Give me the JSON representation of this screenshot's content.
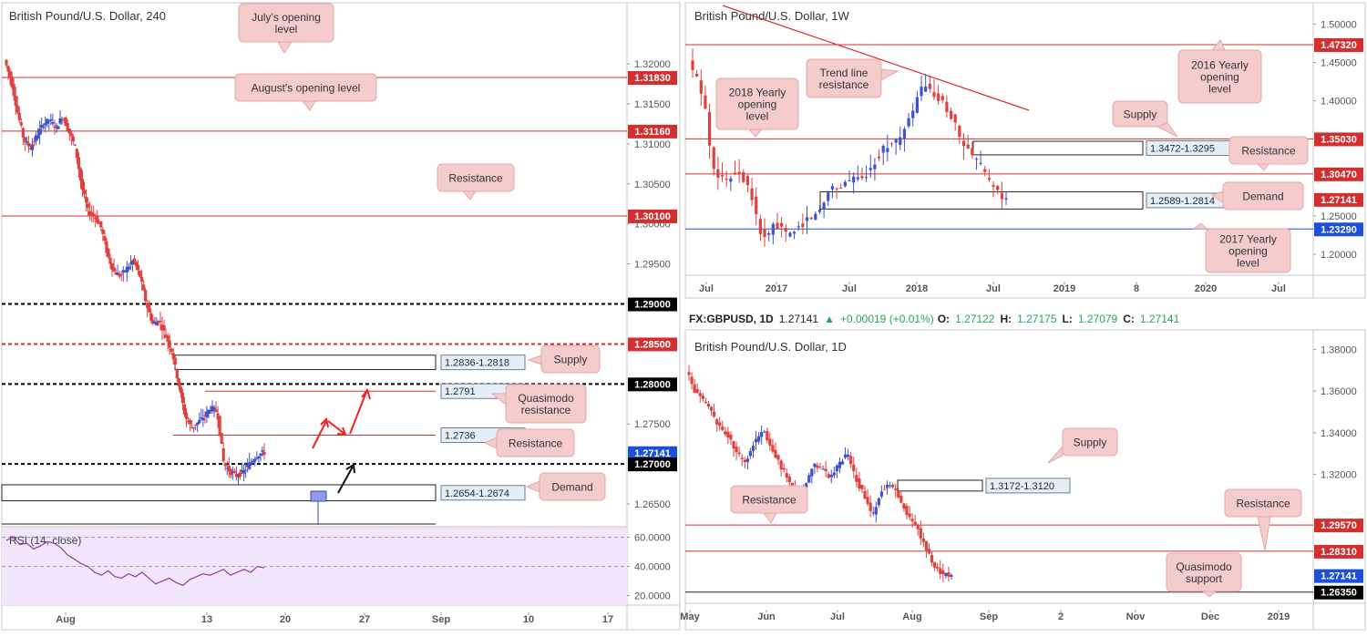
{
  "panels": {
    "left": {
      "title": "British Pound/U.S. Dollar, 240",
      "price_levels": [
        {
          "label": "1.32000"
        },
        {
          "label": "1.31500"
        },
        {
          "label": "1.31000"
        },
        {
          "label": "1.30500"
        },
        {
          "label": "1.30000"
        },
        {
          "label": "1.29500"
        },
        {
          "label": "1.27500"
        },
        {
          "label": "1.26500"
        }
      ],
      "highlight_levels": [
        {
          "label": "1.31830",
          "bg": "#d32f2f"
        },
        {
          "label": "1.31160",
          "bg": "#d32f2f"
        },
        {
          "label": "1.30100",
          "bg": "#d32f2f"
        },
        {
          "label": "1.29000",
          "bg": "#000000"
        },
        {
          "label": "1.28500",
          "bg": "#d32f2f"
        },
        {
          "label": "1.28000",
          "bg": "#000000"
        },
        {
          "label": "1.27141",
          "bg": "#1e4fd8"
        },
        {
          "label": "1.27000",
          "bg": "#000000"
        }
      ],
      "date_labels": [
        "Aug",
        "13",
        "20",
        "27",
        "Sep",
        "10",
        "17"
      ],
      "boxes": [
        "1.2836-1.2818",
        "1.2791",
        "1.2736",
        "1.2654-1.2674"
      ],
      "callouts": [
        "July's opening level",
        "August's opening level",
        "Resistance",
        "Supply",
        "Quasimodo resistance",
        "Resistance",
        "Demand"
      ],
      "rsi": {
        "title": "RSI (14, close)",
        "levels": [
          "60.0000",
          "40.0000",
          "20.0000"
        ]
      }
    },
    "weekly": {
      "title": "British Pound/U.S. Dollar, 1W",
      "price_levels": [
        {
          "label": "1.50000"
        },
        {
          "label": "1.45000"
        },
        {
          "label": "1.40000"
        },
        {
          "label": "1.25000"
        },
        {
          "label": "1.20000"
        }
      ],
      "highlight_levels": [
        {
          "label": "1.47320",
          "bg": "#d32f2f"
        },
        {
          "label": "1.35030",
          "bg": "#d32f2f"
        },
        {
          "label": "1.30470",
          "bg": "#d32f2f"
        },
        {
          "label": "1.27141",
          "bg": "#d32f2f"
        },
        {
          "label": "1.23290",
          "bg": "#1e4fd8"
        }
      ],
      "date_labels": [
        "Jul",
        "2017",
        "Jul",
        "2018",
        "Jul",
        "2019",
        "8",
        "2020",
        "Jul"
      ],
      "boxes": [
        "1.3472-1.3295",
        "1.2589-1.2814"
      ],
      "callouts": [
        "Trend line resistance",
        "2018 Yearly opening level",
        "2016 Yearly opening level",
        "Supply",
        "Resistance",
        "Demand",
        "2017 Yearly opening level"
      ]
    },
    "daily": {
      "title": "British Pound/U.S. Dollar, 1D",
      "price_levels": [
        {
          "label": "1.38000"
        },
        {
          "label": "1.36000"
        },
        {
          "label": "1.34000"
        },
        {
          "label": "1.32000"
        }
      ],
      "highlight_levels": [
        {
          "label": "1.29570",
          "bg": "#d32f2f"
        },
        {
          "label": "1.28310",
          "bg": "#d32f2f"
        },
        {
          "label": "1.27141",
          "bg": "#1e4fd8"
        },
        {
          "label": "1.26350",
          "bg": "#000000"
        }
      ],
      "date_labels": [
        "May",
        "Jun",
        "Jul",
        "Aug",
        "Sep",
        "2",
        "Nov",
        "Dec",
        "2019"
      ],
      "boxes": [
        "1.3172-1.3120"
      ],
      "callouts": [
        "Supply",
        "Resistance",
        "Resistance",
        "Quasimodo support"
      ]
    }
  },
  "header_bar": {
    "symbol": "FX:GBPUSD, 1D",
    "last": "1.27141",
    "arrow": "▲",
    "change": "+0.00019 (+0.01%)",
    "open_label": "O:",
    "open": "1.27122",
    "high_label": "H:",
    "high": "1.27175",
    "low_label": "L:",
    "low": "1.27079",
    "close_label": "C:",
    "close": "1.27141"
  },
  "colors": {
    "up": "#3f51d1",
    "down": "#e0413e",
    "line_red": "#d32f2f",
    "blue": "#1e4fd8",
    "callout_bg": "#f5cccc",
    "rsi_bg": "#f1e6fb",
    "rsi_line": "#8e3c9e"
  },
  "chart_data": [
    {
      "type": "line",
      "title": "British Pound/U.S. Dollar, 240",
      "xlabel": "",
      "ylabel": "",
      "ylim": [
        1.2625,
        1.324
      ],
      "series": [
        {
          "values": [
            1.3205,
            1.318,
            1.314,
            1.3105,
            1.3095,
            1.311,
            1.3125,
            1.313,
            1.312,
            1.3135,
            1.3115,
            1.3095,
            1.3045,
            1.3015,
            1.301,
            1.2995,
            1.296,
            1.294,
            1.2935,
            1.2945,
            1.2955,
            1.2935,
            1.29,
            1.2875,
            1.288,
            1.286,
            1.284,
            1.28,
            1.276,
            1.2745,
            1.2752,
            1.276,
            1.277,
            1.2765,
            1.27,
            1.269,
            1.2685,
            1.269,
            1.27,
            1.271,
            1.2714
          ]
        }
      ],
      "levels": [
        1.3183,
        1.3116,
        1.301,
        1.29,
        1.285,
        1.28,
        1.2791,
        1.2736,
        1.27
      ],
      "zones": [
        [
          1.2818,
          1.2836
        ],
        [
          1.2654,
          1.2674
        ]
      ],
      "last": 1.27141,
      "rsi_series": [
        {
          "values": [
            58,
            60,
            55,
            56,
            52,
            54,
            57,
            56,
            53,
            48,
            45,
            42,
            40,
            36,
            34,
            37,
            33,
            32,
            35,
            33,
            36,
            32,
            28,
            30,
            32,
            29,
            27,
            31,
            33,
            35,
            34,
            36,
            38,
            34,
            36,
            38,
            36,
            40,
            39
          ]
        }
      ]
    },
    {
      "type": "line",
      "title": "British Pound/U.S. Dollar, 1W",
      "xlabel": "",
      "ylabel": "",
      "ylim": [
        1.175,
        1.51
      ],
      "series": [
        {
          "values": [
            1.45,
            1.43,
            1.4,
            1.32,
            1.3,
            1.295,
            1.31,
            1.3,
            1.28,
            1.23,
            1.22,
            1.24,
            1.23,
            1.225,
            1.235,
            1.245,
            1.25,
            1.26,
            1.29,
            1.285,
            1.295,
            1.3,
            1.295,
            1.31,
            1.325,
            1.34,
            1.345,
            1.35,
            1.37,
            1.4,
            1.42,
            1.41,
            1.4,
            1.39,
            1.37,
            1.34,
            1.33,
            1.32,
            1.3,
            1.285,
            1.2714
          ]
        }
      ],
      "levels": [
        1.4732,
        1.3503,
        1.3047,
        1.2329
      ],
      "zones": [
        [
          1.3295,
          1.3472
        ],
        [
          1.2589,
          1.2814
        ]
      ],
      "last": 1.27141
    },
    {
      "type": "line",
      "title": "British Pound/U.S. Dollar, 1D",
      "xlabel": "",
      "ylabel": "",
      "ylim": [
        1.259,
        1.385
      ],
      "series": [
        {
          "values": [
            1.37,
            1.36,
            1.355,
            1.35,
            1.342,
            1.338,
            1.33,
            1.326,
            1.335,
            1.342,
            1.333,
            1.325,
            1.318,
            1.31,
            1.315,
            1.325,
            1.323,
            1.318,
            1.325,
            1.33,
            1.318,
            1.31,
            1.3,
            1.312,
            1.315,
            1.31,
            1.302,
            1.296,
            1.288,
            1.278,
            1.273,
            1.2714
          ]
        }
      ],
      "levels": [
        1.2957,
        1.2831,
        1.2635
      ],
      "zones": [
        [
          1.312,
          1.3172
        ]
      ],
      "last": 1.27141
    }
  ]
}
